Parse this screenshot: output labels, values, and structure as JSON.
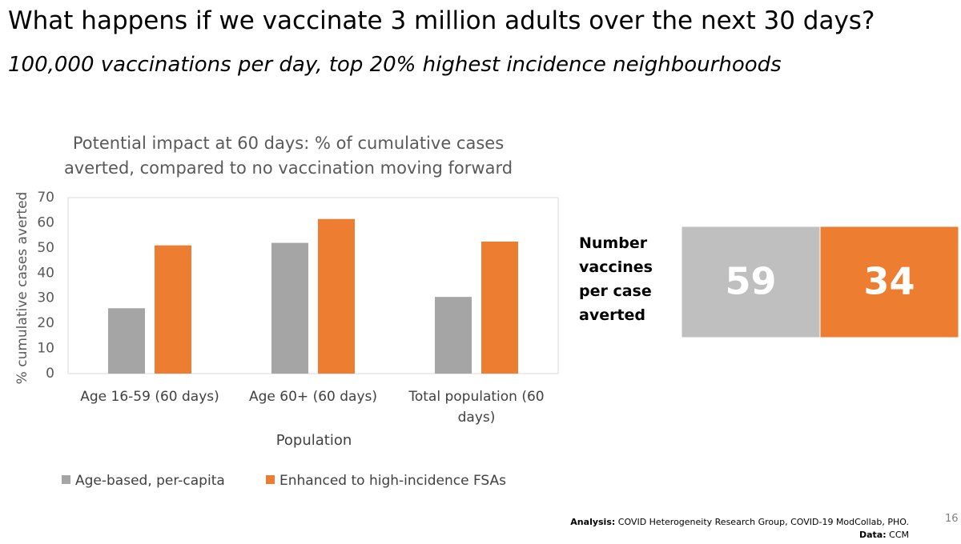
{
  "slide": {
    "title": "What happens if we vaccinate 3 million adults over the next 30 days?",
    "subtitle": "100,000 vaccinations per day, top 20% highest incidence neighbourhoods",
    "page_number": "16",
    "footer": {
      "analysis_label": "Analysis:",
      "analysis_text": "COVID Heterogeneity Research Group, COVID-19 ModCollab, PHO.",
      "data_label": "Data:",
      "data_text": "CCM"
    }
  },
  "chart_data": {
    "type": "bar",
    "title": "Potential impact at 60 days: % of cumulative cases averted, compared to no vaccination moving forward",
    "x_label": "Population",
    "y_label": "% cumulative cases  averted",
    "categories": [
      "Age 16-59 (60 days)",
      "Age 60+ (60 days)",
      "Total population (60 days)"
    ],
    "series": [
      {
        "name": "Age-based, per-capita",
        "color": "#a5a5a5",
        "values": [
          26,
          52,
          30.5
        ]
      },
      {
        "name": "Enhanced to high-incidence FSAs",
        "color": "#ed7d31",
        "values": [
          51,
          61.5,
          52.5
        ]
      }
    ],
    "ylim": [
      0,
      70
    ],
    "yticks": [
      0,
      10,
      20,
      30,
      40,
      50,
      60,
      70
    ],
    "grid": false,
    "legend": "bottom"
  },
  "callout": {
    "label": "Number vaccines per case averted",
    "values": [
      59,
      34
    ],
    "colors": [
      "#bfbfbf",
      "#ed7d31"
    ]
  }
}
